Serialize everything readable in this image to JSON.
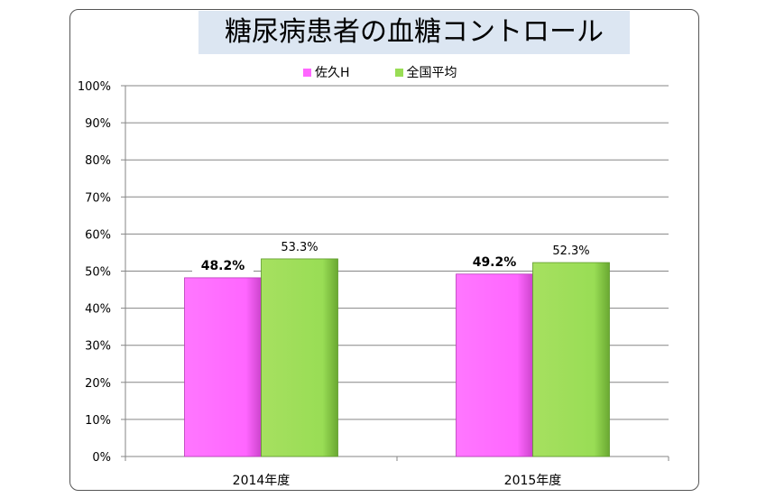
{
  "chart_data": {
    "type": "bar",
    "title": "糖尿病患者の血糖コントロール",
    "categories": [
      "2014年度",
      "2015年度"
    ],
    "series": [
      {
        "name": "佐久H",
        "values": [
          48.2,
          49.2
        ],
        "labels": [
          "48.2%",
          "49.2%"
        ],
        "color": "#ff66ff"
      },
      {
        "name": "全国平均",
        "values": [
          53.3,
          52.3
        ],
        "labels": [
          "53.3%",
          "52.3%"
        ],
        "color": "#99dd55"
      }
    ],
    "yticks": [
      "0%",
      "10%",
      "20%",
      "30%",
      "40%",
      "50%",
      "60%",
      "70%",
      "80%",
      "90%",
      "100%"
    ],
    "ylim": [
      0,
      100
    ],
    "grid": true,
    "legend_position": "top"
  }
}
